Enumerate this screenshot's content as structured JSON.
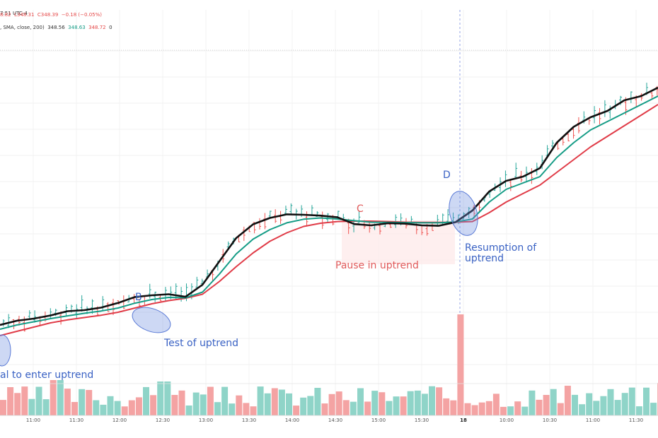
{
  "header": {
    "line1": "7:51 UTC-4",
    "line2_prefix": "8.82",
    "line2_low": "L348.31",
    "line2_close": "C348.39",
    "line2_change": "−0.18 (−0.05%)",
    "line3_prefix": ", SMA, close, 200)",
    "line3_v1": "348.56",
    "line3_v2": "348.63",
    "line3_v3": "348.72",
    "line3_v4": "0"
  },
  "annotations": {
    "a_text": "al to enter uptrend",
    "b_letter": "B",
    "b_text": "Test of uptrend",
    "c_letter": "C",
    "c_text": "Pause in uptrend",
    "d_letter": "D",
    "d_text_1": "Resumption of",
    "d_text_2": "uptrend"
  },
  "colors": {
    "up": "#26a69a",
    "down": "#ef5350",
    "vol_up": "#8fd4c8",
    "vol_down": "#f4a3a3",
    "ma_fast": "#111111",
    "ma_mid": "#159c86",
    "ma_slow": "#e03b47",
    "annotation_blue": "#3a62c4",
    "annotation_red": "#e05a5a"
  },
  "chart_data": {
    "type": "line",
    "title": "",
    "xlabel": "",
    "ylabel": "",
    "grid": true,
    "x_ticks": [
      "11:00",
      "11:30",
      "12:00",
      "12:30",
      "13:00",
      "13:30",
      "14:00",
      "14:30",
      "15:00",
      "15:30",
      "18",
      "10:00",
      "10:30",
      "11:00",
      "11:30"
    ],
    "x_tick_bold": "18",
    "x_index_range": [
      0,
      120
    ],
    "price_range": [
      0,
      100
    ],
    "ma_series": [
      {
        "key": "fast",
        "points": [
          [
            0,
            14
          ],
          [
            5,
            16
          ],
          [
            10,
            17
          ],
          [
            15,
            18.5
          ],
          [
            20,
            20.5
          ],
          [
            25,
            21
          ],
          [
            30,
            22.2
          ],
          [
            35,
            24.4
          ],
          [
            40,
            27.2
          ],
          [
            45,
            28
          ],
          [
            50,
            28.5
          ],
          [
            55,
            27.3
          ],
          [
            60,
            33
          ],
          [
            65,
            44
          ],
          [
            70,
            55
          ],
          [
            75,
            61.5
          ],
          [
            80,
            64.5
          ],
          [
            85,
            66.2
          ],
          [
            90,
            66
          ],
          [
            95,
            65.6
          ],
          [
            100,
            64.8
          ],
          [
            105,
            61.6
          ],
          [
            110,
            61
          ],
          [
            115,
            62
          ],
          [
            120,
            61.8
          ],
          [
            125,
            61
          ],
          [
            130,
            60.8
          ],
          [
            135,
            62.5
          ],
          [
            140,
            68
          ],
          [
            145,
            77
          ],
          [
            150,
            82
          ],
          [
            155,
            84
          ],
          [
            160,
            88
          ],
          [
            165,
            100
          ],
          [
            170,
            107.5
          ],
          [
            175,
            112
          ],
          [
            180,
            115
          ],
          [
            185,
            120
          ],
          [
            190,
            122
          ],
          [
            195,
            126
          ]
        ]
      },
      {
        "key": "mid",
        "points": [
          [
            0,
            12
          ],
          [
            5,
            14
          ],
          [
            10,
            15.5
          ],
          [
            15,
            17
          ],
          [
            20,
            18.3
          ],
          [
            25,
            19.5
          ],
          [
            30,
            20.6
          ],
          [
            35,
            22
          ],
          [
            40,
            24.3
          ],
          [
            45,
            26
          ],
          [
            50,
            27
          ],
          [
            55,
            26.8
          ],
          [
            60,
            29.5
          ],
          [
            65,
            38
          ],
          [
            70,
            47.5
          ],
          [
            75,
            54.5
          ],
          [
            80,
            59
          ],
          [
            85,
            62.2
          ],
          [
            90,
            63.9
          ],
          [
            95,
            64.5
          ],
          [
            100,
            64
          ],
          [
            105,
            63.2
          ],
          [
            110,
            62.5
          ],
          [
            115,
            62.4
          ],
          [
            120,
            62.3
          ],
          [
            125,
            62.2
          ],
          [
            130,
            62.2
          ],
          [
            135,
            62.6
          ],
          [
            140,
            64
          ],
          [
            145,
            72
          ],
          [
            150,
            78
          ],
          [
            155,
            81
          ],
          [
            160,
            84
          ],
          [
            165,
            93
          ],
          [
            170,
            100
          ],
          [
            175,
            106
          ],
          [
            180,
            110
          ],
          [
            185,
            114
          ],
          [
            190,
            118
          ],
          [
            195,
            122
          ]
        ]
      },
      {
        "key": "slow",
        "points": [
          [
            0,
            9
          ],
          [
            5,
            11
          ],
          [
            10,
            13
          ],
          [
            15,
            15
          ],
          [
            20,
            16.4
          ],
          [
            25,
            17.5
          ],
          [
            30,
            18.6
          ],
          [
            35,
            20
          ],
          [
            40,
            22
          ],
          [
            45,
            24
          ],
          [
            50,
            25.5
          ],
          [
            55,
            26.6
          ],
          [
            60,
            28.5
          ],
          [
            65,
            34.5
          ],
          [
            70,
            41.5
          ],
          [
            75,
            48
          ],
          [
            80,
            53.5
          ],
          [
            85,
            57.5
          ],
          [
            90,
            60.5
          ],
          [
            95,
            62
          ],
          [
            100,
            62.8
          ],
          [
            105,
            63
          ],
          [
            110,
            63
          ],
          [
            115,
            62.8
          ],
          [
            120,
            62.5
          ],
          [
            125,
            62.4
          ],
          [
            130,
            62.4
          ],
          [
            135,
            62.5
          ],
          [
            140,
            62.8
          ],
          [
            145,
            67
          ],
          [
            150,
            72
          ],
          [
            155,
            76
          ],
          [
            160,
            80
          ],
          [
            165,
            86
          ],
          [
            170,
            92
          ],
          [
            175,
            98
          ],
          [
            180,
            103
          ],
          [
            185,
            108
          ],
          [
            190,
            113
          ],
          [
            195,
            118
          ]
        ]
      }
    ],
    "volume_range": [
      0,
      100
    ]
  }
}
